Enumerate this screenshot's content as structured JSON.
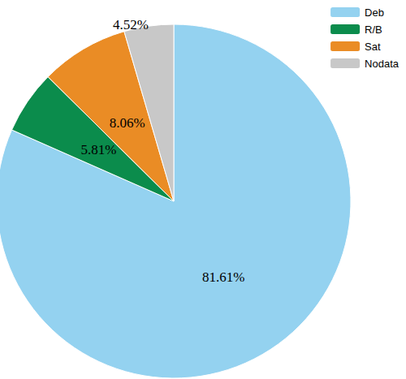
{
  "chart_data": {
    "type": "pie",
    "categories": [
      "Deb",
      "R/B",
      "Sat",
      "Nodata"
    ],
    "values": [
      81.61,
      5.81,
      8.06,
      4.52
    ],
    "value_labels": [
      "81.61%",
      "5.81%",
      "8.06%",
      "4.52%"
    ],
    "colors": [
      "#94d2f0",
      "#0b8c4c",
      "#ea8c25",
      "#c8c8c8"
    ],
    "data_labels": true,
    "legend": "top-right"
  }
}
